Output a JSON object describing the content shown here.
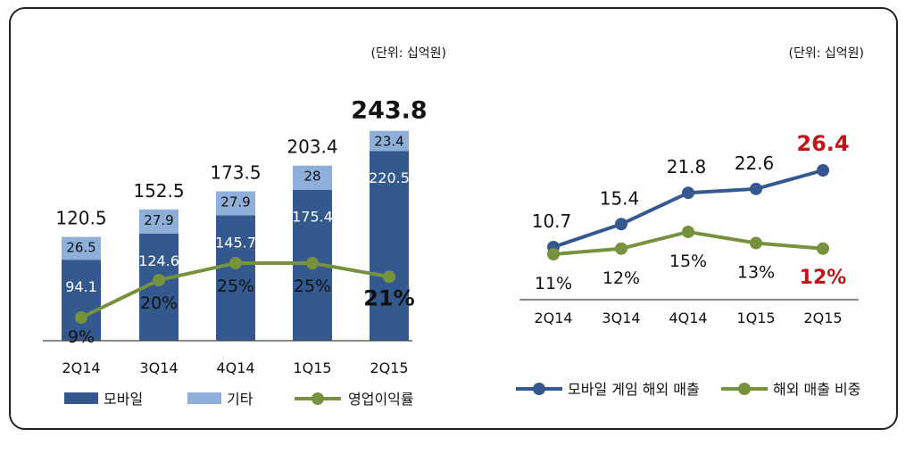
{
  "chart_data": [
    {
      "type": "bar",
      "unit_label": "(단위: 십억원)",
      "categories": [
        "2Q14",
        "3Q14",
        "4Q14",
        "1Q15",
        "2Q15"
      ],
      "series": [
        {
          "name": "모바일",
          "values": [
            94.1,
            124.6,
            145.7,
            175.4,
            220.5
          ],
          "color": "#34598F"
        },
        {
          "name": "기타",
          "values": [
            26.5,
            27.9,
            27.9,
            28.0,
            23.4
          ],
          "color": "#8EAFD9"
        }
      ],
      "totals": [
        "120.5",
        "152.5",
        "173.5",
        "203.4",
        "243.8"
      ],
      "line_series": {
        "name": "영업이익률",
        "values": [
          9,
          20,
          25,
          25,
          21
        ],
        "labels": [
          "9%",
          "20%",
          "25%",
          "25%",
          "21%"
        ],
        "color": "#76923C"
      },
      "ylim": [
        0,
        250
      ],
      "legend": "bottom"
    },
    {
      "type": "line",
      "unit_label": "(단위: 십억원)",
      "categories": [
        "2Q14",
        "3Q14",
        "4Q14",
        "1Q15",
        "2Q15"
      ],
      "series": [
        {
          "name": "모바일 게임 해외 매출",
          "values": [
            10.7,
            15.4,
            21.8,
            22.6,
            26.4
          ],
          "labels": [
            "10.7",
            "15.4",
            "21.8",
            "22.6",
            "26.4"
          ],
          "color": "#34598F"
        },
        {
          "name": "해외 매출 비중",
          "values": [
            11,
            12,
            15,
            13,
            12
          ],
          "labels": [
            "11%",
            "12%",
            "15%",
            "13%",
            "12%"
          ],
          "color": "#76923C"
        }
      ],
      "highlight_color": "#C0141B",
      "legend": "bottom"
    }
  ]
}
